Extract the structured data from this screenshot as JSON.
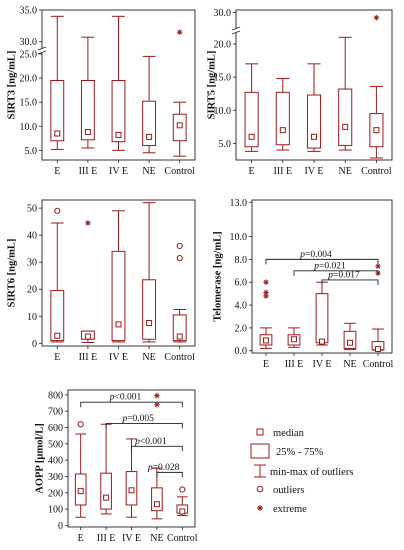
{
  "colors": {
    "series": "#9b1b1b",
    "frame": "#222222",
    "bracket": "#222222"
  },
  "chart_data": [
    {
      "id": "sirt3",
      "type": "box",
      "ylabel": "SIRT3 [ng/mL]",
      "broken_axis": true,
      "yticks_lower": [
        "5.0",
        "10.0",
        "15.0",
        "20.0",
        "25.0"
      ],
      "yticks_upper": [
        "30.0",
        "35.0"
      ],
      "ylim_lower": [
        3,
        25
      ],
      "ylim_upper": [
        29,
        35
      ],
      "categories": [
        "E",
        "III E",
        "IV E",
        "NE",
        "Control"
      ],
      "boxes": [
        {
          "cat": "E",
          "whisker_low": 5.2,
          "q1": 7.0,
          "median": 8.5,
          "q3": 19.5,
          "whisker_high": 34.0
        },
        {
          "cat": "III E",
          "whisker_low": 5.5,
          "q1": 7.2,
          "median": 8.8,
          "q3": 19.5,
          "whisker_high": 30.7
        },
        {
          "cat": "IV E",
          "whisker_low": 5.0,
          "q1": 6.8,
          "median": 8.2,
          "q3": 19.5,
          "whisker_high": 34.0
        },
        {
          "cat": "NE",
          "whisker_low": 4.5,
          "q1": 6.0,
          "median": 7.8,
          "q3": 15.2,
          "whisker_high": 24.5
        },
        {
          "cat": "Control",
          "whisker_low": 3.8,
          "q1": 7.0,
          "median": 10.2,
          "q3": 12.5,
          "whisker_high": 15.0
        }
      ],
      "outliers": [],
      "extremes": [
        {
          "cat": "Control",
          "y": 31.5
        }
      ],
      "brackets": []
    },
    {
      "id": "sirt5",
      "type": "box",
      "ylabel": "SIRT5 [ng/mL]",
      "broken_axis": true,
      "yticks_lower": [
        "5.0",
        "10.0",
        "15.0",
        "20.0"
      ],
      "yticks_upper": [
        "30.0"
      ],
      "ylim_lower": [
        2.5,
        21.5
      ],
      "ylim_upper": [
        27,
        30.5
      ],
      "categories": [
        "E",
        "III E",
        "IV E",
        "NE",
        "Control"
      ],
      "boxes": [
        {
          "cat": "E",
          "whisker_low": 3.8,
          "q1": 4.5,
          "median": 6.0,
          "q3": 12.7,
          "whisker_high": 17.0
        },
        {
          "cat": "III E",
          "whisker_low": 4.0,
          "q1": 4.8,
          "median": 7.0,
          "q3": 12.7,
          "whisker_high": 14.8
        },
        {
          "cat": "IV E",
          "whisker_low": 3.8,
          "q1": 4.3,
          "median": 6.0,
          "q3": 12.3,
          "whisker_high": 17.0
        },
        {
          "cat": "NE",
          "whisker_low": 4.0,
          "q1": 4.7,
          "median": 7.5,
          "q3": 13.2,
          "whisker_high": 21.0
        },
        {
          "cat": "Control",
          "whisker_low": 2.8,
          "q1": 4.5,
          "median": 7.0,
          "q3": 9.5,
          "whisker_high": 13.6
        }
      ],
      "outliers": [],
      "extremes": [
        {
          "cat": "Control",
          "y": 29.0
        }
      ],
      "brackets": []
    },
    {
      "id": "sirt6",
      "type": "box",
      "ylabel": "SIRT6 [ng/mL]",
      "yticks": [
        "0",
        "10",
        "20",
        "30",
        "40",
        "50"
      ],
      "ylim": [
        -1,
        53
      ],
      "categories": [
        "E",
        "III E",
        "IV E",
        "NE",
        "Control"
      ],
      "boxes": [
        {
          "cat": "E",
          "whisker_low": 0.5,
          "q1": 1.0,
          "median": 2.8,
          "q3": 19.5,
          "whisker_high": 44.5
        },
        {
          "cat": "III E",
          "whisker_low": 0.3,
          "q1": 1.5,
          "median": 2.5,
          "q3": 4.5,
          "whisker_high": 4.5
        },
        {
          "cat": "IV E",
          "whisker_low": 0.5,
          "q1": 1.0,
          "median": 7.0,
          "q3": 34.0,
          "whisker_high": 49.0
        },
        {
          "cat": "NE",
          "whisker_low": 0.5,
          "q1": 1.5,
          "median": 7.5,
          "q3": 23.5,
          "whisker_high": 52.0
        },
        {
          "cat": "Control",
          "whisker_low": 0.5,
          "q1": 1.0,
          "median": 2.5,
          "q3": 10.5,
          "whisker_high": 12.5
        }
      ],
      "outliers": [
        {
          "cat": "E",
          "y": 49.0
        },
        {
          "cat": "Control",
          "y": 36.0
        },
        {
          "cat": "Control",
          "y": 31.5
        }
      ],
      "extremes": [
        {
          "cat": "III E",
          "y": 44.5
        }
      ],
      "brackets": []
    },
    {
      "id": "telomerase",
      "type": "box",
      "ylabel": "Telomerase [ng/mL]",
      "yticks": [
        "0.0",
        "2.0",
        "4.0",
        "6.0",
        "8.0",
        "10.0",
        "13.0"
      ],
      "ytick_values": [
        0,
        2,
        4,
        6,
        8,
        10,
        13
      ],
      "ylim": [
        -0.2,
        13.2
      ],
      "categories": [
        "E",
        "III E",
        "IV E",
        "NE",
        "Control"
      ],
      "boxes": [
        {
          "cat": "E",
          "whisker_low": 0.2,
          "q1": 0.5,
          "median": 0.9,
          "q3": 1.4,
          "whisker_high": 2.0
        },
        {
          "cat": "III E",
          "whisker_low": 0.3,
          "q1": 0.5,
          "median": 1.0,
          "q3": 1.4,
          "whisker_high": 2.0
        },
        {
          "cat": "IV E",
          "whisker_low": 0.5,
          "q1": 0.7,
          "median": 0.8,
          "q3": 5.0,
          "whisker_high": 6.0
        },
        {
          "cat": "NE",
          "whisker_low": 0.1,
          "q1": 0.2,
          "median": 0.7,
          "q3": 1.7,
          "whisker_high": 2.4
        },
        {
          "cat": "Control",
          "whisker_low": 0.05,
          "q1": 0.08,
          "median": 0.15,
          "q3": 0.8,
          "whisker_high": 1.9
        }
      ],
      "outliers": [],
      "extremes": [
        {
          "cat": "E",
          "y": 5.1
        },
        {
          "cat": "E",
          "y": 4.8
        },
        {
          "cat": "E",
          "y": 6.0
        },
        {
          "cat": "Control",
          "y": 6.8
        },
        {
          "cat": "Control",
          "y": 7.4
        }
      ],
      "brackets": [
        {
          "from": "E",
          "to": "Control",
          "y": 8.0,
          "label": "p=0.004"
        },
        {
          "from": "III E",
          "to": "Control",
          "y": 7.0,
          "label": "p=0.021"
        },
        {
          "from": "IV E",
          "to": "Control",
          "y": 6.2,
          "label": "p=0.017"
        }
      ]
    },
    {
      "id": "aopp",
      "type": "box",
      "ylabel": "AOPP [µmol/L]",
      "yticks": [
        "0",
        "100",
        "200",
        "300",
        "400",
        "500",
        "600",
        "700",
        "800"
      ],
      "ylim": [
        -10,
        830
      ],
      "categories": [
        "E",
        "III E",
        "IV E",
        "NE",
        "Control"
      ],
      "boxes": [
        {
          "cat": "E",
          "whisker_low": 50,
          "q1": 125,
          "median": 210,
          "q3": 315,
          "whisker_high": 560
        },
        {
          "cat": "III E",
          "whisker_low": 70,
          "q1": 100,
          "median": 170,
          "q3": 320,
          "whisker_high": 620
        },
        {
          "cat": "IV E",
          "whisker_low": 50,
          "q1": 125,
          "median": 215,
          "q3": 330,
          "whisker_high": 530
        },
        {
          "cat": "NE",
          "whisker_low": 40,
          "q1": 90,
          "median": 130,
          "q3": 230,
          "whisker_high": 350
        },
        {
          "cat": "Control",
          "whisker_low": 60,
          "q1": 75,
          "median": 85,
          "q3": 125,
          "whisker_high": 175
        }
      ],
      "outliers": [
        {
          "cat": "E",
          "y": 620
        },
        {
          "cat": "Control",
          "y": 220
        }
      ],
      "extremes": [
        {
          "cat": "NE",
          "y": 740
        },
        {
          "cat": "NE",
          "y": 795
        }
      ],
      "brackets": [
        {
          "from": "E",
          "to": "Control",
          "y": 755,
          "label": "p<0.001"
        },
        {
          "from": "III E",
          "to": "Control",
          "y": 625,
          "label": "p=0.005"
        },
        {
          "from": "IV E",
          "to": "Control",
          "y": 485,
          "label": "p<0.001"
        },
        {
          "from": "NE",
          "to": "Control",
          "y": 325,
          "label": "p=0.028"
        }
      ]
    }
  ],
  "legend": {
    "median": "median",
    "box": "25% - 75%",
    "whisker": "min-max of outliers",
    "outliers": "outliers",
    "extreme": "extreme"
  }
}
